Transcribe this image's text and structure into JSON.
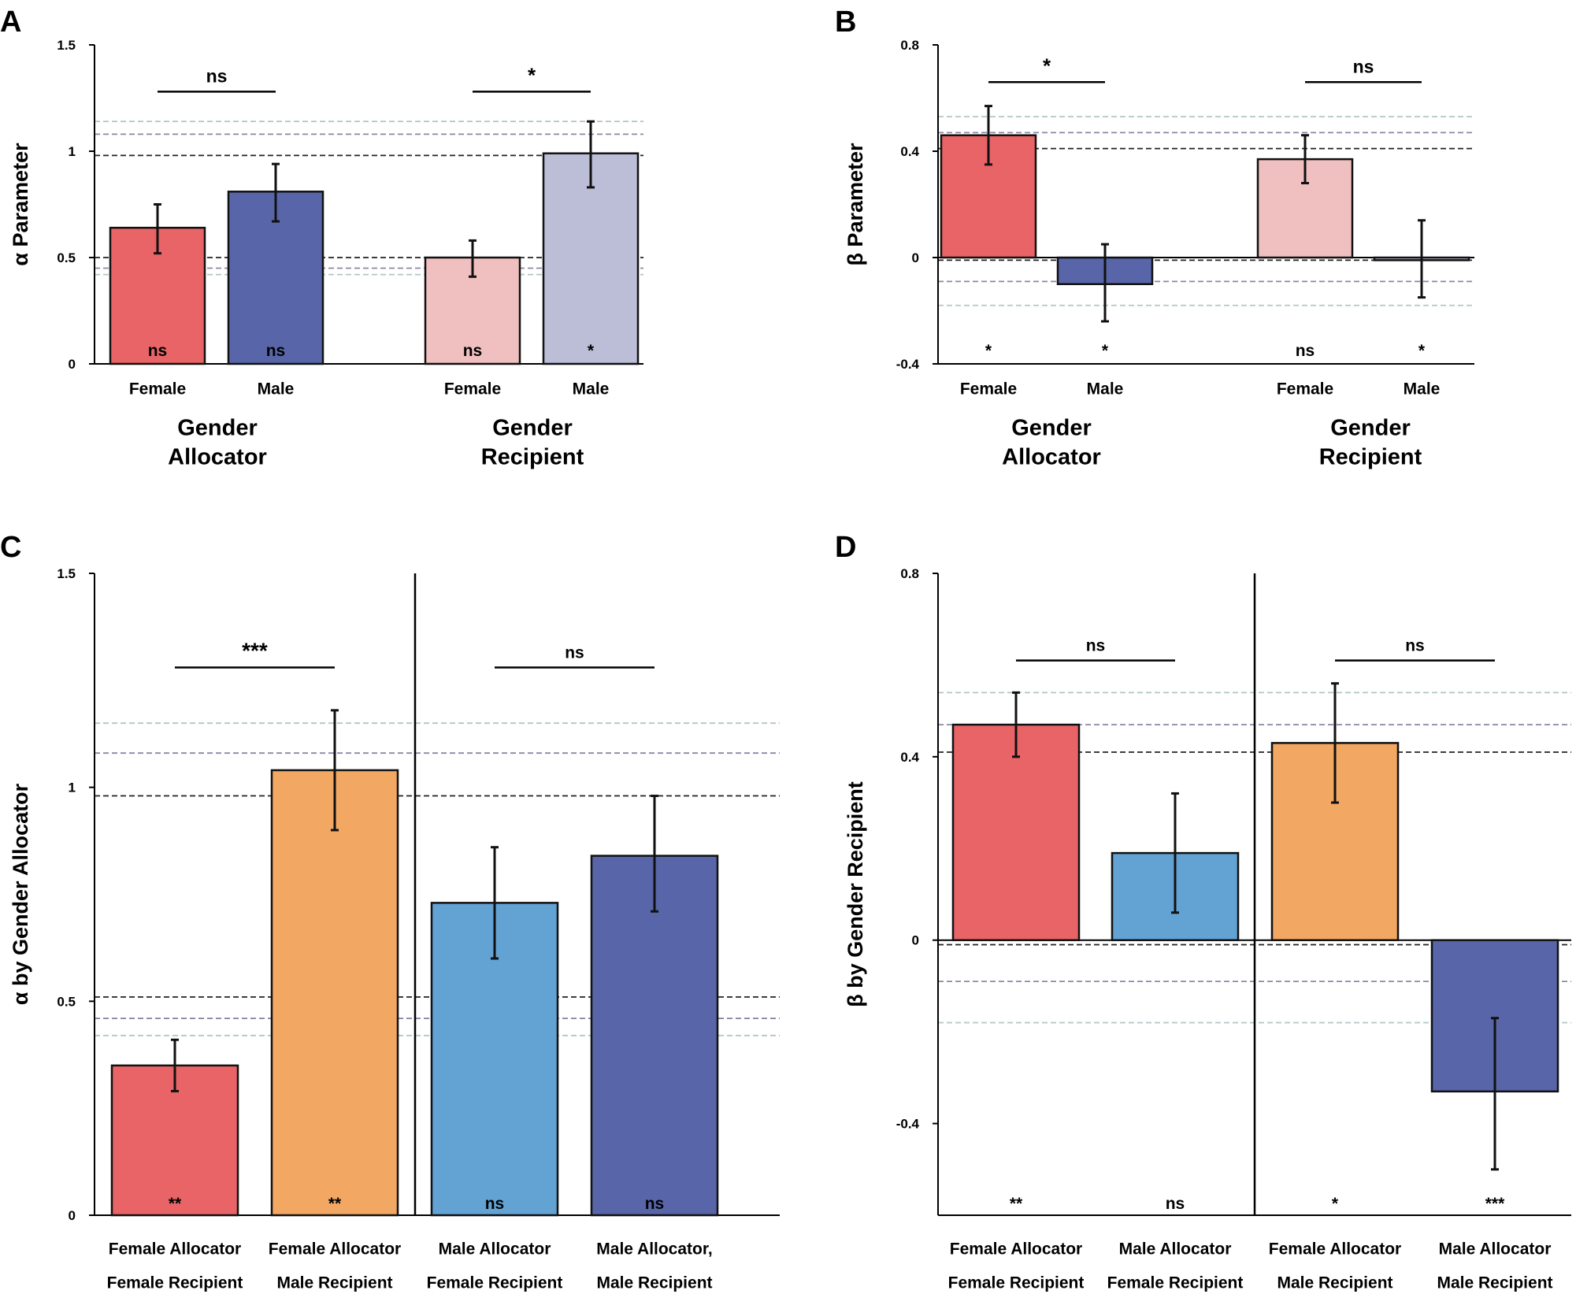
{
  "chart_data": [
    {
      "panel": "A",
      "type": "bar",
      "ylabel": "α Parameter",
      "ylim": [
        0,
        1.5
      ],
      "yticks": [
        {
          "v": 0,
          "label": "0"
        },
        {
          "v": 0.5,
          "label": "0.5"
        },
        {
          "v": 1,
          "label": "1"
        },
        {
          "v": 1.5,
          "label": "1.5"
        }
      ],
      "bars": [
        {
          "category": "Female",
          "value": 0.64,
          "err_low": 0.52,
          "err_high": 0.75,
          "color": "#e86466",
          "sig": "ns"
        },
        {
          "category": "Male",
          "value": 0.81,
          "err_low": 0.67,
          "err_high": 0.94,
          "color": "#5865a8",
          "sig": "ns"
        },
        {
          "category": "Female",
          "value": 0.5,
          "err_low": 0.41,
          "err_high": 0.58,
          "color": "#f0bfc0",
          "sig": "ns"
        },
        {
          "category": "Male",
          "value": 0.99,
          "err_low": 0.83,
          "err_high": 1.14,
          "color": "#bcbdd7",
          "sig": "*"
        }
      ],
      "groups": [
        {
          "line1": "Gender",
          "line2": "Allocator",
          "bars": [
            0,
            1
          ]
        },
        {
          "line1": "Gender",
          "line2": "Recipient",
          "bars": [
            2,
            3
          ]
        }
      ],
      "comparisons": [
        {
          "from": 0,
          "to": 1,
          "y": 1.28,
          "label": "ns"
        },
        {
          "from": 2,
          "to": 3,
          "y": 1.28,
          "label": "*"
        }
      ],
      "reference_lines": [
        {
          "y": 0.98,
          "color": "#222222"
        },
        {
          "y": 1.08,
          "color": "#8e86a8"
        },
        {
          "y": 1.14,
          "color": "#b3c6c6"
        },
        {
          "y": 0.5,
          "color": "#222222"
        },
        {
          "y": 0.45,
          "color": "#8e86a8"
        },
        {
          "y": 0.42,
          "color": "#b3c6c6"
        }
      ]
    },
    {
      "panel": "B",
      "type": "bar",
      "ylabel": "β Parameter",
      "ylim": [
        -0.4,
        0.8
      ],
      "yticks": [
        {
          "v": -0.4,
          "label": "-0.4"
        },
        {
          "v": 0,
          "label": "0"
        },
        {
          "v": 0.4,
          "label": "0.4"
        },
        {
          "v": 0.8,
          "label": "0.8"
        }
      ],
      "bars": [
        {
          "category": "Female",
          "value": 0.46,
          "err_low": 0.35,
          "err_high": 0.57,
          "color": "#e86466",
          "sig": "*"
        },
        {
          "category": "Male",
          "value": -0.1,
          "err_low": -0.24,
          "err_high": 0.05,
          "color": "#5865a8",
          "sig": "*"
        },
        {
          "category": "Female",
          "value": 0.37,
          "err_low": 0.28,
          "err_high": 0.46,
          "color": "#f0bfc0",
          "sig": "ns"
        },
        {
          "category": "Male",
          "value": -0.01,
          "err_low": -0.15,
          "err_high": 0.14,
          "color": "#bcbdd7",
          "sig": "*"
        }
      ],
      "groups": [
        {
          "line1": "Gender",
          "line2": "Allocator",
          "bars": [
            0,
            1
          ]
        },
        {
          "line1": "Gender",
          "line2": "Recipient",
          "bars": [
            2,
            3
          ]
        }
      ],
      "comparisons": [
        {
          "from": 0,
          "to": 1,
          "y": 0.66,
          "label": "*"
        },
        {
          "from": 2,
          "to": 3,
          "y": 0.66,
          "label": "ns"
        }
      ],
      "reference_lines": [
        {
          "y": 0.41,
          "color": "#222222"
        },
        {
          "y": 0.47,
          "color": "#8e86a8"
        },
        {
          "y": 0.53,
          "color": "#b3c6c6"
        },
        {
          "y": -0.01,
          "color": "#222222"
        },
        {
          "y": -0.09,
          "color": "#8e86a8"
        },
        {
          "y": -0.18,
          "color": "#b3c6c6"
        }
      ]
    },
    {
      "panel": "C",
      "type": "bar",
      "ylabel": "α by Gender Allocator",
      "ylim": [
        0,
        1.5
      ],
      "yticks": [
        {
          "v": 0,
          "label": "0"
        },
        {
          "v": 0.5,
          "label": "0.5"
        },
        {
          "v": 1,
          "label": "1"
        },
        {
          "v": 1.5,
          "label": "1.5"
        }
      ],
      "bars": [
        {
          "category": "Female Allocator",
          "category2": "Female Recipient",
          "value": 0.35,
          "err_low": 0.29,
          "err_high": 0.41,
          "color": "#e86466",
          "sig": "**"
        },
        {
          "category": "Female Allocator",
          "category2": "Male Recipient",
          "value": 1.04,
          "err_low": 0.9,
          "err_high": 1.18,
          "color": "#f2a863",
          "sig": "**"
        },
        {
          "category": "Male Allocator",
          "category2": "Female Recipient",
          "value": 0.73,
          "err_low": 0.6,
          "err_high": 0.86,
          "color": "#62a3d4",
          "sig": "ns"
        },
        {
          "category": "Male Allocator,",
          "category2": "Male Recipient",
          "value": 0.84,
          "err_low": 0.71,
          "err_high": 0.98,
          "color": "#5865a8",
          "sig": "ns"
        }
      ],
      "comparisons": [
        {
          "from": 0,
          "to": 1,
          "y": 1.28,
          "label": "***"
        },
        {
          "from": 2,
          "to": 3,
          "y": 1.28,
          "label": "ns"
        }
      ],
      "reference_lines": [
        {
          "y": 0.98,
          "color": "#222222"
        },
        {
          "y": 1.08,
          "color": "#8e86a8"
        },
        {
          "y": 1.15,
          "color": "#b3c6c6"
        },
        {
          "y": 0.51,
          "color": "#222222"
        },
        {
          "y": 0.46,
          "color": "#8e86a8"
        },
        {
          "y": 0.42,
          "color": "#b3c6c6"
        }
      ]
    },
    {
      "panel": "D",
      "type": "bar",
      "ylabel": "β by Gender  Recipient",
      "ylim": [
        -0.6,
        0.8
      ],
      "yticks": [
        {
          "v": -0.4,
          "label": "-0.4"
        },
        {
          "v": 0,
          "label": "0"
        },
        {
          "v": 0.4,
          "label": "0.4"
        },
        {
          "v": 0.8,
          "label": "0.8"
        }
      ],
      "bars": [
        {
          "category": "Female Allocator",
          "category2": "Female Recipient",
          "value": 0.47,
          "err_low": 0.4,
          "err_high": 0.54,
          "color": "#e86466",
          "sig": "**"
        },
        {
          "category": "Male Allocator",
          "category2": "Female Recipient",
          "value": 0.19,
          "err_low": 0.06,
          "err_high": 0.32,
          "color": "#62a3d4",
          "sig": "ns"
        },
        {
          "category": "Female Allocator",
          "category2": "Male Recipient",
          "value": 0.43,
          "err_low": 0.3,
          "err_high": 0.56,
          "color": "#f2a863",
          "sig": "*"
        },
        {
          "category": "Male Allocator",
          "category2": "Male Recipient",
          "value": -0.33,
          "err_low": -0.5,
          "err_high": -0.17,
          "color": "#5865a8",
          "sig": "***"
        }
      ],
      "comparisons": [
        {
          "from": 0,
          "to": 1,
          "y": 0.61,
          "label": "ns"
        },
        {
          "from": 2,
          "to": 3,
          "y": 0.61,
          "label": "ns"
        }
      ],
      "reference_lines": [
        {
          "y": 0.41,
          "color": "#222222"
        },
        {
          "y": 0.47,
          "color": "#8e86a8"
        },
        {
          "y": 0.54,
          "color": "#b3c6c6"
        },
        {
          "y": -0.01,
          "color": "#222222"
        },
        {
          "y": -0.09,
          "color": "#8e86a8"
        },
        {
          "y": -0.18,
          "color": "#b3c6c6"
        }
      ]
    }
  ]
}
